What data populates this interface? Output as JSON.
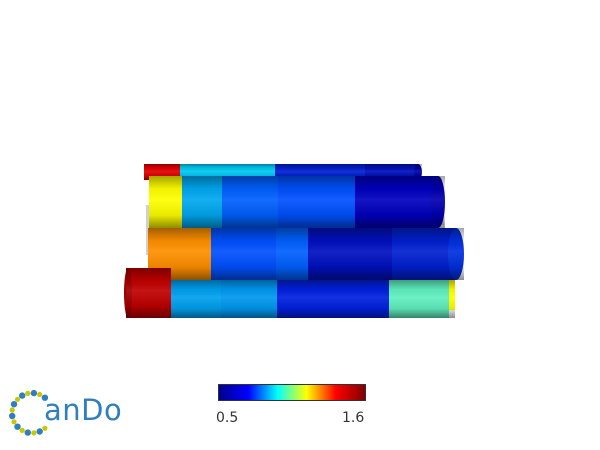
{
  "colorbar": {
    "min_label": "0.5",
    "max_label": "1.6",
    "stops": [
      "#00008f",
      "#0000ff",
      "#00ffff",
      "#ffff00",
      "#ff0000",
      "#800000"
    ]
  },
  "logo": {
    "text": "anDo",
    "accent_color": "#2f7fc0",
    "dot_color": "#c8c800"
  },
  "helices": [
    {
      "name": "helix-back",
      "segments": [
        "#e00000",
        "#00c8f0",
        "#0020d0",
        "#0010b8"
      ]
    },
    {
      "name": "helix-upper",
      "segments": [
        "#ffff00",
        "#00a8f0",
        "#0060ff",
        "#0050ff",
        "#0000c0"
      ]
    },
    {
      "name": "helix-middle",
      "segments": [
        "#ff9000",
        "#0050ff",
        "#0060ff",
        "#0010c0",
        "#0020d0"
      ]
    },
    {
      "name": "helix-lower",
      "segments": [
        "#c00000",
        "#00a0f0",
        "#0098f0",
        "#0020e0",
        "#60f0c0",
        "#ffff00"
      ]
    }
  ]
}
